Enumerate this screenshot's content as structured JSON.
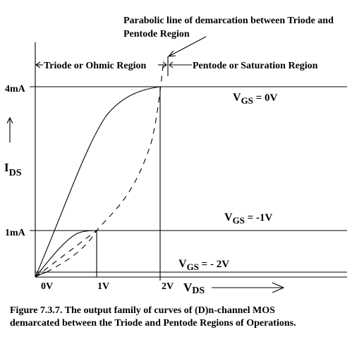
{
  "annotations": {
    "parabolic_line_1": "Parabolic line of demarcation between Triode and",
    "parabolic_line_2": "Pentode Region",
    "triode_region": "Triode or Ohmic Region",
    "pentode_region": "Pentode or Saturation Region"
  },
  "axes": {
    "y_label_main": "I",
    "y_label_sub": "DS",
    "x_label_main": "V",
    "x_label_sub": "DS",
    "y_ticks": [
      "4mA",
      "1mA"
    ],
    "x_ticks": [
      "0V",
      "1V",
      "2V"
    ]
  },
  "curves": [
    {
      "v_main": "V",
      "v_sub": "GS",
      "v_val": " = 0V"
    },
    {
      "v_main": "V",
      "v_sub": "GS",
      "v_val": " = -1V"
    },
    {
      "v_main": "V",
      "v_sub": "GS",
      "v_val": " = - 2V"
    }
  ],
  "caption": {
    "line1": "Figure 7.3.7. The output family of curves of (D)n-channel MOS",
    "line2": "demarcated between the Triode and Pentode Regions of Operations."
  }
}
